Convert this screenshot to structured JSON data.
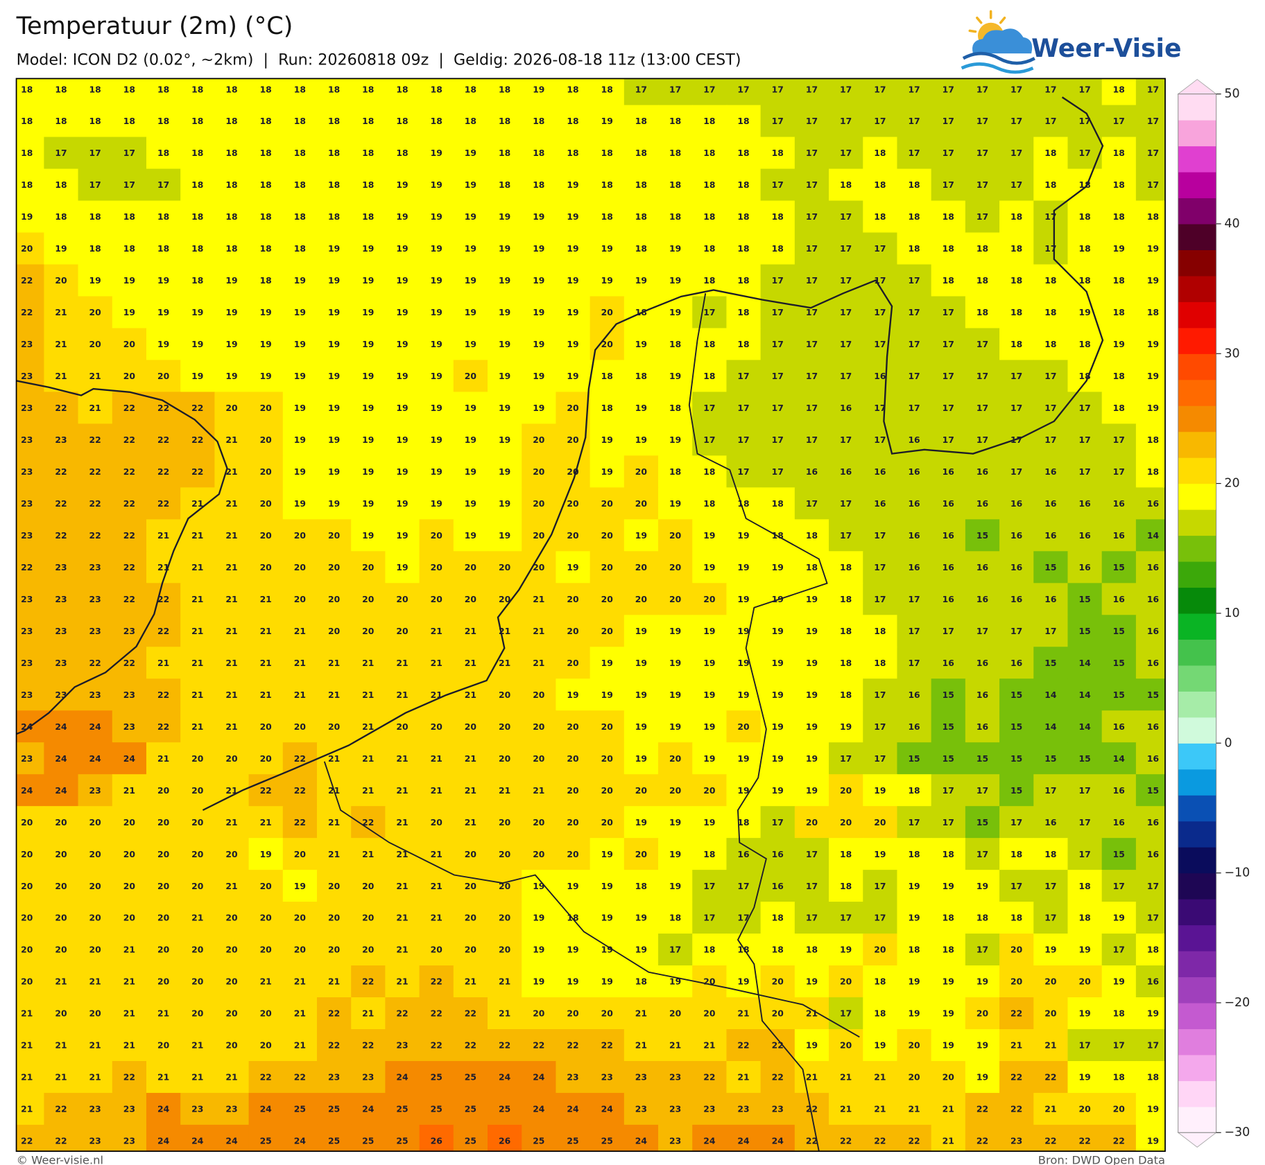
{
  "header": {
    "title": "Temperatuur (2m) (°C)",
    "subtitle": "Model: ICON D2 (0.02°, ~2km)  |  Run: 20260818 09z  |  Geldig: 2026-08-18 11z (13:00 CEST)",
    "logo": "Weer-Visie"
  },
  "map": {
    "values": [
      [
        18,
        18,
        18,
        18,
        18,
        18,
        18,
        18,
        18,
        18,
        18,
        18,
        18,
        18,
        18,
        19,
        18,
        18,
        17,
        17,
        17,
        17,
        17,
        17,
        17,
        17,
        17,
        17,
        17,
        17,
        17,
        17,
        18,
        17
      ],
      [
        18,
        18,
        18,
        18,
        18,
        18,
        18,
        18,
        18,
        18,
        18,
        18,
        18,
        18,
        18,
        18,
        18,
        19,
        18,
        18,
        18,
        18,
        17,
        17,
        17,
        17,
        17,
        17,
        17,
        17,
        17,
        17,
        17,
        17
      ],
      [
        18,
        17,
        17,
        17,
        18,
        18,
        18,
        18,
        18,
        18,
        18,
        18,
        19,
        19,
        18,
        18,
        18,
        18,
        18,
        18,
        18,
        18,
        18,
        17,
        17,
        18,
        17,
        17,
        17,
        17,
        18,
        17,
        18,
        17
      ],
      [
        18,
        18,
        17,
        17,
        17,
        18,
        18,
        18,
        18,
        18,
        18,
        19,
        19,
        19,
        18,
        18,
        19,
        18,
        18,
        18,
        18,
        18,
        17,
        17,
        18,
        18,
        18,
        17,
        17,
        17,
        18,
        18,
        18,
        17
      ],
      [
        19,
        18,
        18,
        18,
        18,
        18,
        18,
        18,
        18,
        18,
        18,
        19,
        19,
        19,
        19,
        19,
        19,
        18,
        18,
        18,
        18,
        18,
        18,
        17,
        17,
        18,
        18,
        18,
        17,
        18,
        17,
        18,
        18,
        18
      ],
      [
        20,
        19,
        18,
        18,
        18,
        18,
        18,
        18,
        18,
        19,
        19,
        19,
        19,
        19,
        19,
        19,
        19,
        19,
        18,
        19,
        18,
        18,
        18,
        17,
        17,
        17,
        18,
        18,
        18,
        18,
        17,
        18,
        19,
        19
      ],
      [
        22,
        20,
        19,
        19,
        19,
        18,
        19,
        18,
        19,
        19,
        19,
        19,
        19,
        19,
        19,
        19,
        19,
        19,
        19,
        19,
        18,
        18,
        17,
        17,
        17,
        17,
        17,
        18,
        18,
        18,
        18,
        18,
        18,
        19
      ],
      [
        22,
        21,
        20,
        19,
        19,
        19,
        19,
        19,
        19,
        19,
        19,
        19,
        19,
        19,
        19,
        19,
        19,
        20,
        18,
        19,
        17,
        18,
        17,
        17,
        17,
        17,
        17,
        17,
        18,
        18,
        18,
        19,
        18,
        18
      ],
      [
        23,
        21,
        20,
        20,
        19,
        19,
        19,
        19,
        19,
        19,
        19,
        19,
        19,
        19,
        19,
        19,
        19,
        20,
        19,
        18,
        18,
        18,
        17,
        17,
        17,
        17,
        17,
        17,
        17,
        18,
        18,
        18,
        19,
        19
      ],
      [
        23,
        21,
        21,
        20,
        20,
        19,
        19,
        19,
        19,
        19,
        19,
        19,
        19,
        20,
        19,
        19,
        19,
        18,
        18,
        19,
        18,
        17,
        17,
        17,
        17,
        16,
        17,
        17,
        17,
        17,
        17,
        18,
        18,
        19
      ],
      [
        23,
        22,
        21,
        22,
        22,
        22,
        20,
        20,
        19,
        19,
        19,
        19,
        19,
        19,
        19,
        19,
        20,
        18,
        19,
        18,
        17,
        17,
        17,
        17,
        16,
        17,
        17,
        17,
        17,
        17,
        17,
        17,
        18,
        19
      ],
      [
        23,
        23,
        22,
        22,
        22,
        22,
        21,
        20,
        19,
        19,
        19,
        19,
        19,
        19,
        19,
        20,
        20,
        19,
        19,
        19,
        17,
        17,
        17,
        17,
        17,
        17,
        16,
        17,
        17,
        17,
        17,
        17,
        17,
        18
      ],
      [
        23,
        22,
        22,
        22,
        22,
        22,
        21,
        20,
        19,
        19,
        19,
        19,
        19,
        19,
        19,
        20,
        20,
        19,
        20,
        18,
        18,
        17,
        17,
        16,
        16,
        16,
        16,
        16,
        16,
        17,
        16,
        17,
        17,
        18
      ],
      [
        23,
        22,
        22,
        22,
        22,
        21,
        21,
        20,
        19,
        19,
        19,
        19,
        19,
        19,
        19,
        20,
        20,
        20,
        20,
        19,
        18,
        18,
        18,
        17,
        17,
        16,
        16,
        16,
        16,
        16,
        16,
        16,
        16,
        16
      ],
      [
        23,
        22,
        22,
        22,
        21,
        21,
        21,
        20,
        20,
        20,
        19,
        19,
        20,
        19,
        19,
        20,
        20,
        20,
        19,
        20,
        19,
        19,
        18,
        18,
        17,
        17,
        16,
        16,
        15,
        16,
        16,
        16,
        16,
        14
      ],
      [
        22,
        23,
        23,
        22,
        21,
        21,
        21,
        20,
        20,
        20,
        20,
        19,
        20,
        20,
        20,
        20,
        19,
        20,
        20,
        20,
        19,
        19,
        19,
        18,
        18,
        17,
        16,
        16,
        16,
        16,
        15,
        16,
        15,
        16
      ],
      [
        23,
        23,
        23,
        22,
        22,
        21,
        21,
        21,
        20,
        20,
        20,
        20,
        20,
        20,
        20,
        21,
        20,
        20,
        20,
        20,
        20,
        19,
        19,
        19,
        18,
        17,
        17,
        16,
        16,
        16,
        16,
        15,
        16,
        16
      ],
      [
        23,
        23,
        23,
        23,
        22,
        21,
        21,
        21,
        21,
        20,
        20,
        20,
        21,
        21,
        21,
        21,
        20,
        20,
        19,
        19,
        19,
        19,
        19,
        19,
        18,
        18,
        17,
        17,
        17,
        17,
        17,
        15,
        15,
        16
      ],
      [
        23,
        23,
        22,
        22,
        21,
        21,
        21,
        21,
        21,
        21,
        21,
        21,
        21,
        21,
        21,
        21,
        20,
        19,
        19,
        19,
        19,
        19,
        19,
        19,
        18,
        18,
        17,
        16,
        16,
        16,
        15,
        14,
        15,
        16
      ],
      [
        23,
        23,
        23,
        23,
        22,
        21,
        21,
        21,
        21,
        21,
        21,
        21,
        21,
        21,
        20,
        20,
        19,
        19,
        19,
        19,
        19,
        19,
        19,
        19,
        18,
        17,
        16,
        15,
        16,
        15,
        14,
        14,
        15,
        15
      ],
      [
        24,
        24,
        24,
        23,
        22,
        21,
        21,
        20,
        20,
        20,
        21,
        20,
        20,
        20,
        20,
        20,
        20,
        20,
        19,
        19,
        19,
        20,
        19,
        19,
        19,
        17,
        16,
        15,
        16,
        15,
        14,
        14,
        16,
        16
      ],
      [
        23,
        24,
        24,
        24,
        21,
        20,
        20,
        20,
        22,
        21,
        21,
        21,
        21,
        21,
        20,
        20,
        20,
        20,
        19,
        20,
        19,
        19,
        19,
        19,
        17,
        17,
        15,
        15,
        15,
        15,
        15,
        15,
        14,
        16
      ],
      [
        24,
        24,
        23,
        21,
        20,
        20,
        21,
        22,
        22,
        21,
        21,
        21,
        21,
        21,
        21,
        21,
        20,
        20,
        20,
        20,
        20,
        19,
        19,
        19,
        20,
        19,
        18,
        17,
        17,
        15,
        17,
        17,
        16,
        15
      ],
      [
        20,
        20,
        20,
        20,
        20,
        20,
        21,
        21,
        22,
        21,
        22,
        21,
        20,
        21,
        20,
        20,
        20,
        20,
        19,
        19,
        19,
        18,
        17,
        20,
        20,
        20,
        17,
        17,
        15,
        17,
        16,
        17,
        16,
        16
      ],
      [
        20,
        20,
        20,
        20,
        20,
        20,
        20,
        19,
        20,
        21,
        21,
        21,
        21,
        20,
        20,
        20,
        20,
        19,
        20,
        19,
        18,
        16,
        16,
        17,
        18,
        19,
        18,
        18,
        17,
        18,
        18,
        17,
        15,
        16
      ],
      [
        20,
        20,
        20,
        20,
        20,
        20,
        21,
        20,
        19,
        20,
        20,
        21,
        21,
        20,
        20,
        19,
        19,
        19,
        18,
        19,
        17,
        17,
        16,
        17,
        18,
        17,
        19,
        19,
        19,
        17,
        17,
        18,
        17,
        17
      ],
      [
        20,
        20,
        20,
        20,
        20,
        21,
        20,
        20,
        20,
        20,
        20,
        21,
        21,
        20,
        20,
        19,
        18,
        19,
        19,
        18,
        17,
        17,
        18,
        17,
        17,
        17,
        19,
        18,
        18,
        18,
        17,
        18,
        19,
        17
      ],
      [
        20,
        20,
        20,
        21,
        20,
        20,
        20,
        20,
        20,
        20,
        20,
        21,
        20,
        20,
        20,
        19,
        19,
        19,
        19,
        17,
        18,
        18,
        18,
        18,
        19,
        20,
        18,
        18,
        17,
        20,
        19,
        19,
        17,
        18
      ],
      [
        20,
        21,
        21,
        21,
        20,
        20,
        20,
        21,
        21,
        21,
        22,
        21,
        22,
        21,
        21,
        19,
        19,
        19,
        18,
        19,
        20,
        19,
        20,
        19,
        20,
        18,
        19,
        19,
        19,
        20,
        20,
        20,
        19,
        16
      ],
      [
        21,
        20,
        20,
        21,
        21,
        20,
        20,
        20,
        21,
        22,
        21,
        22,
        22,
        22,
        21,
        20,
        20,
        20,
        21,
        20,
        20,
        21,
        20,
        21,
        17,
        18,
        19,
        19,
        20,
        22,
        20,
        19,
        18,
        19
      ],
      [
        21,
        21,
        21,
        21,
        20,
        21,
        20,
        20,
        21,
        22,
        22,
        23,
        22,
        22,
        22,
        22,
        22,
        22,
        21,
        21,
        21,
        22,
        22,
        19,
        20,
        19,
        20,
        19,
        19,
        21,
        21,
        17,
        17,
        17
      ],
      [
        21,
        21,
        21,
        22,
        21,
        21,
        21,
        22,
        22,
        23,
        23,
        24,
        25,
        25,
        24,
        24,
        23,
        23,
        23,
        23,
        22,
        21,
        22,
        21,
        21,
        21,
        20,
        20,
        19,
        22,
        22,
        19,
        18,
        18
      ],
      [
        21,
        22,
        23,
        23,
        24,
        23,
        23,
        24,
        25,
        25,
        24,
        25,
        25,
        25,
        25,
        24,
        24,
        24,
        23,
        23,
        23,
        23,
        23,
        22,
        21,
        21,
        21,
        21,
        22,
        22,
        21,
        20,
        20,
        19
      ],
      [
        22,
        22,
        23,
        23,
        24,
        24,
        24,
        25,
        24,
        25,
        25,
        25,
        26,
        25,
        26,
        25,
        25,
        25,
        24,
        23,
        24,
        24,
        24,
        22,
        22,
        22,
        22,
        21,
        22,
        23,
        22,
        22,
        22,
        19
      ]
    ],
    "colorbar": {
      "lim": [
        -30,
        50
      ],
      "ticks": [
        50,
        40,
        30,
        20,
        10,
        0,
        {
          "value": -10,
          "label": "−10"
        },
        {
          "value": -20,
          "label": "−20"
        },
        {
          "value": -30,
          "label": "−30"
        }
      ],
      "colors": [
        "#fff0fc",
        "#ffd6f6",
        "#f4a8ec",
        "#e07ede",
        "#c45ad0",
        "#a040bc",
        "#7e28a8",
        "#5a1494",
        "#3a0a74",
        "#1e0654",
        "#0a0c5c",
        "#0a2a8c",
        "#0a50b4",
        "#0a9ae0",
        "#3cc8f8",
        "#d0fadc",
        "#a6eca8",
        "#74d874",
        "#44c24c",
        "#0ab424",
        "#068a0a",
        "#3ca80a",
        "#78c00a",
        "#c6d800",
        "#ffff00",
        "#ffdc00",
        "#f8b800",
        "#f58a00",
        "#ff6a00",
        "#ff4a00",
        "#ff1a00",
        "#e00000",
        "#b00000",
        "#860000",
        "#4e0028",
        "#80006a",
        "#b8009e",
        "#e040d0",
        "#f8a4dc",
        "#ffdcf2"
      ]
    }
  },
  "footer": {
    "left": "© Weer-visie.nl",
    "right": "Bron: DWD Open Data"
  }
}
